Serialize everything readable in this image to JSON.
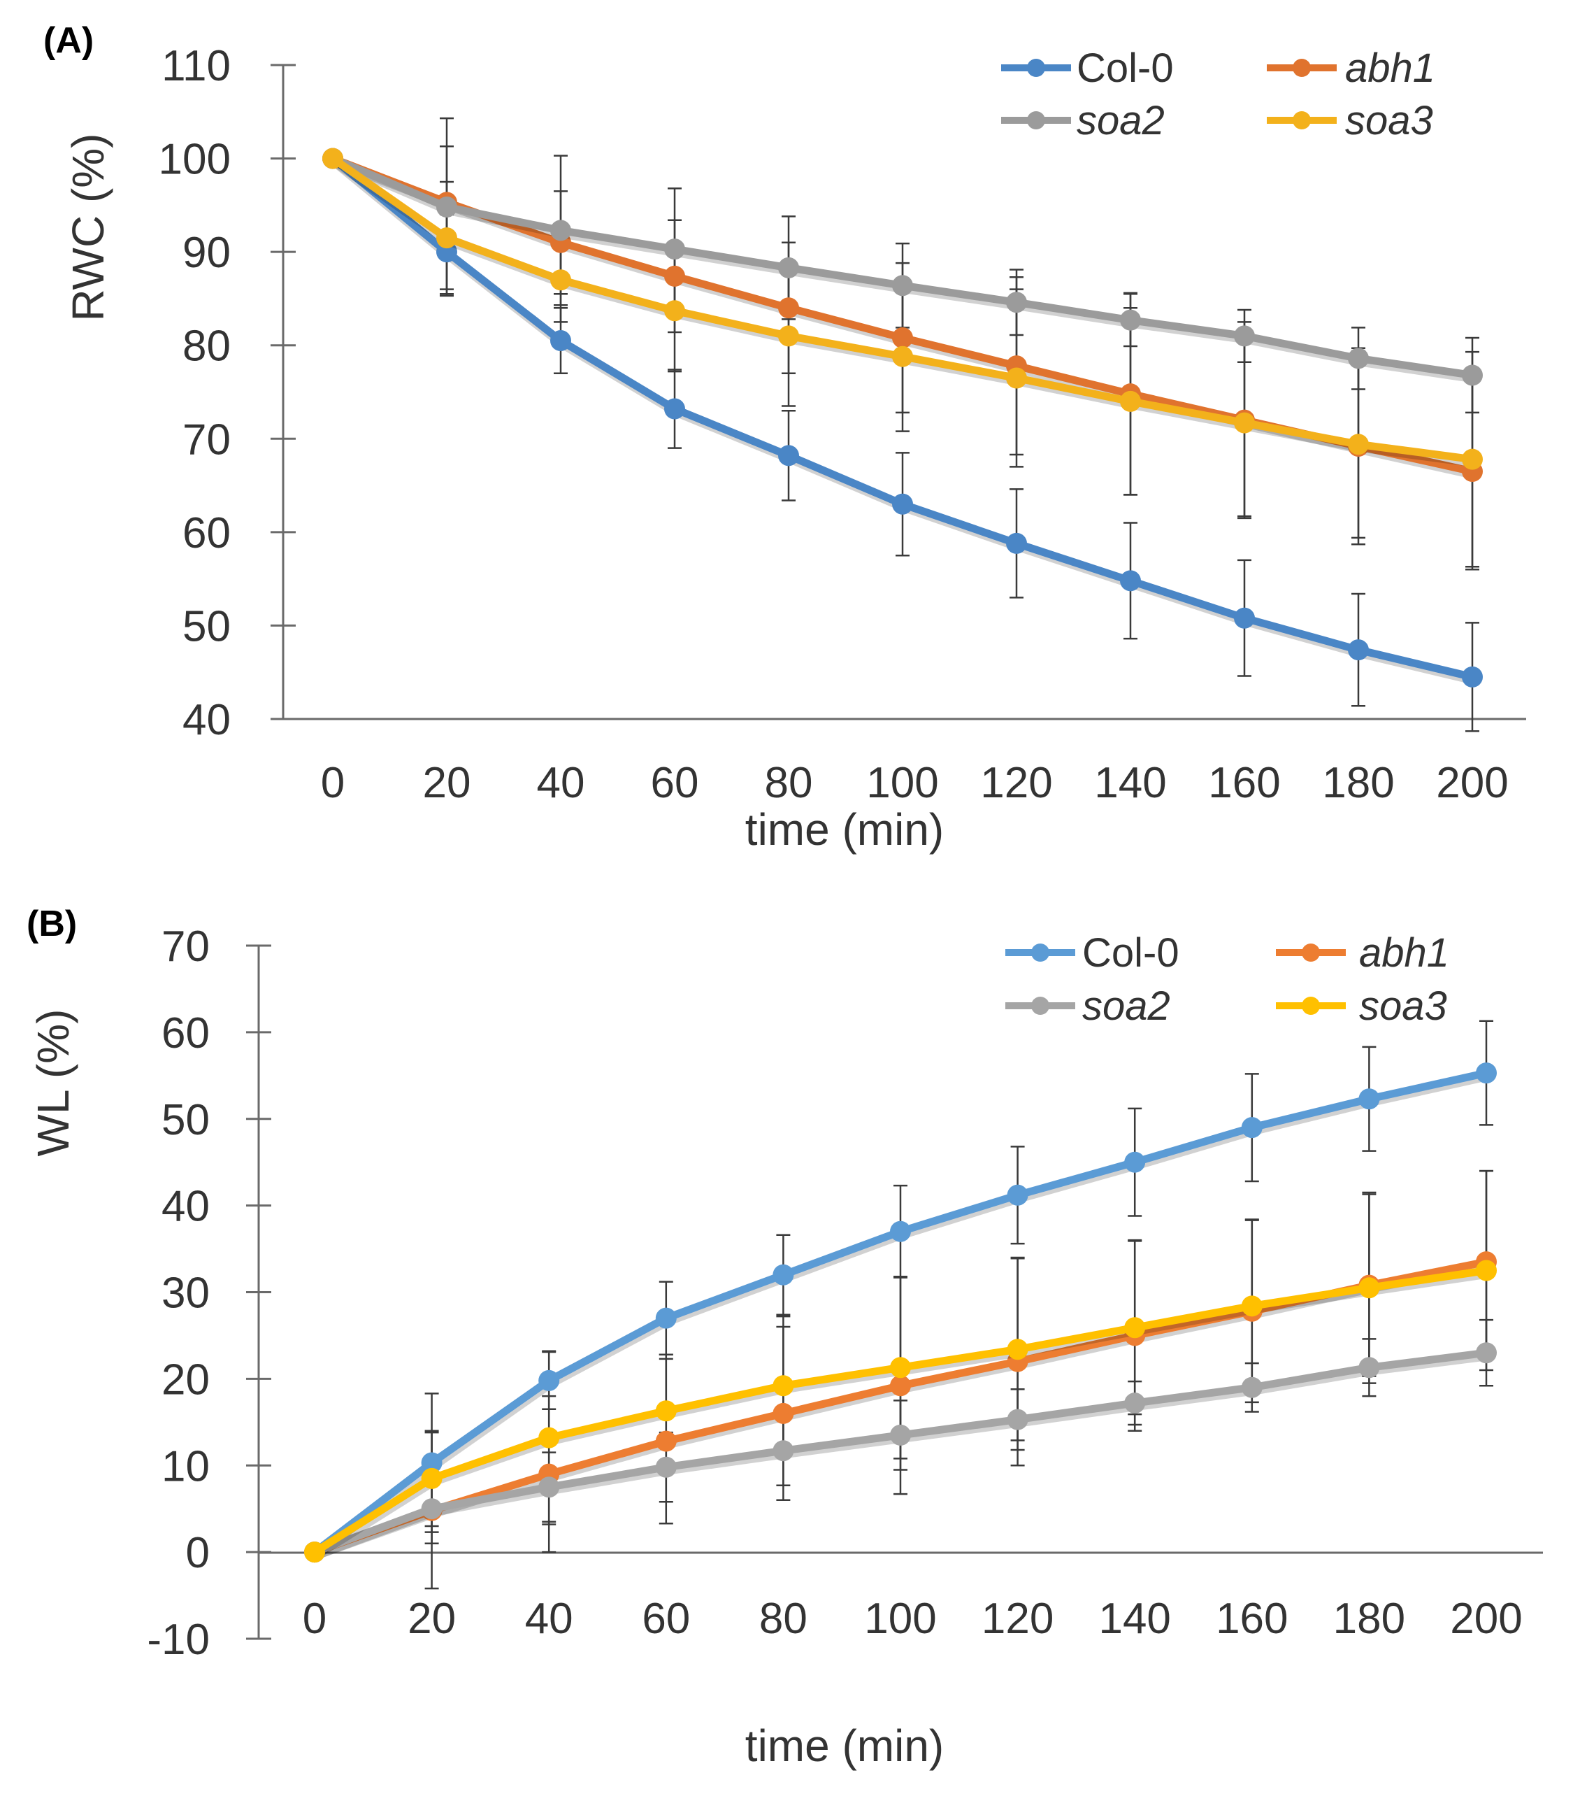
{
  "chart_data": [
    {
      "panel_label": "(A)",
      "type": "line",
      "ylabel": "RWC (%)",
      "xlabel": "time (min)",
      "ylim": [
        40,
        110
      ],
      "yticks": [
        40,
        50,
        60,
        70,
        80,
        90,
        100,
        110
      ],
      "x": [
        0,
        20,
        40,
        60,
        80,
        100,
        120,
        140,
        160,
        180,
        200
      ],
      "grid": false,
      "legend": "top-right",
      "series": [
        {
          "name": "Col-0",
          "italic": false,
          "color": "#4a86c6",
          "values": [
            100,
            90,
            80.5,
            73.2,
            68.2,
            63,
            58.8,
            54.8,
            50.8,
            47.4,
            44.5
          ],
          "errors": [
            0.5,
            4,
            3.5,
            4.2,
            4.8,
            5.5,
            5.8,
            6.2,
            6.2,
            6,
            5.8
          ]
        },
        {
          "name": "abh1",
          "italic": true,
          "color": "#e0732e",
          "values": [
            100,
            95.3,
            91,
            87.4,
            84,
            80.8,
            77.8,
            74.8,
            72,
            69.2,
            66.5
          ],
          "errors": [
            0.5,
            6,
            5.5,
            6,
            7,
            8,
            9.5,
            10.8,
            10.5,
            10.5,
            10.5
          ]
        },
        {
          "name": "soa2",
          "italic": true,
          "color": "#9b9b9b",
          "values": [
            100,
            94.8,
            92.3,
            90.3,
            88.3,
            86.4,
            84.6,
            82.7,
            81,
            78.6,
            76.8
          ],
          "errors": [
            0.5,
            9.5,
            8,
            6.5,
            5.5,
            4.5,
            3.5,
            2.8,
            2.8,
            3.3,
            4
          ]
        },
        {
          "name": "soa3",
          "italic": true,
          "color": "#f3b11b",
          "values": [
            100,
            91.5,
            87,
            83.7,
            81,
            78.8,
            76.5,
            74,
            71.7,
            69.4,
            67.8
          ],
          "errors": [
            0.5,
            6,
            4.5,
            6.5,
            7.5,
            8,
            9.5,
            10,
            10,
            10,
            11.5
          ]
        }
      ]
    },
    {
      "panel_label": "(B)",
      "type": "line",
      "ylabel": "WL (%)",
      "xlabel": "time (min)",
      "ylim": [
        -10,
        70
      ],
      "yticks": [
        -10,
        0,
        10,
        20,
        30,
        40,
        50,
        60,
        70
      ],
      "x": [
        0,
        20,
        40,
        60,
        80,
        100,
        120,
        140,
        160,
        180,
        200
      ],
      "grid": false,
      "legend": "top-right",
      "series": [
        {
          "name": "Col-0",
          "italic": false,
          "color": "#5b9bd5",
          "values": [
            0,
            10.3,
            19.8,
            27,
            32,
            37,
            41.2,
            45,
            49,
            52.3,
            55.3
          ],
          "errors": [
            0,
            8,
            3.3,
            4.2,
            4.6,
            5.3,
            5.6,
            6.2,
            6.2,
            6,
            6
          ]
        },
        {
          "name": "abh1",
          "italic": false,
          "color": "#ed7d31",
          "values": [
            0,
            4.8,
            9,
            12.8,
            16,
            19.2,
            22,
            25,
            27.8,
            30.8,
            33.5
          ],
          "errors": [
            0,
            9,
            9,
            9.5,
            10,
            12.5,
            12,
            11,
            10.5,
            10.5,
            10.5
          ]
        },
        {
          "name": "soa2",
          "italic": true,
          "color": "#a5a5a5",
          "values": [
            0,
            5,
            7.5,
            9.8,
            11.7,
            13.5,
            15.3,
            17.2,
            19,
            21.3,
            23
          ],
          "errors": [
            0,
            4,
            4,
            4,
            4,
            4,
            3.5,
            2.5,
            2.8,
            3.3,
            3.8
          ]
        },
        {
          "name": "soa3",
          "italic": true,
          "color": "#ffc000",
          "values": [
            0,
            8.5,
            13.2,
            16.3,
            19.2,
            21.3,
            23.4,
            25.9,
            28.4,
            30.5,
            32.5
          ],
          "errors": [
            0,
            5.5,
            10,
            6.5,
            8,
            10.5,
            10.5,
            10,
            10,
            11,
            11.5
          ]
        }
      ]
    }
  ]
}
